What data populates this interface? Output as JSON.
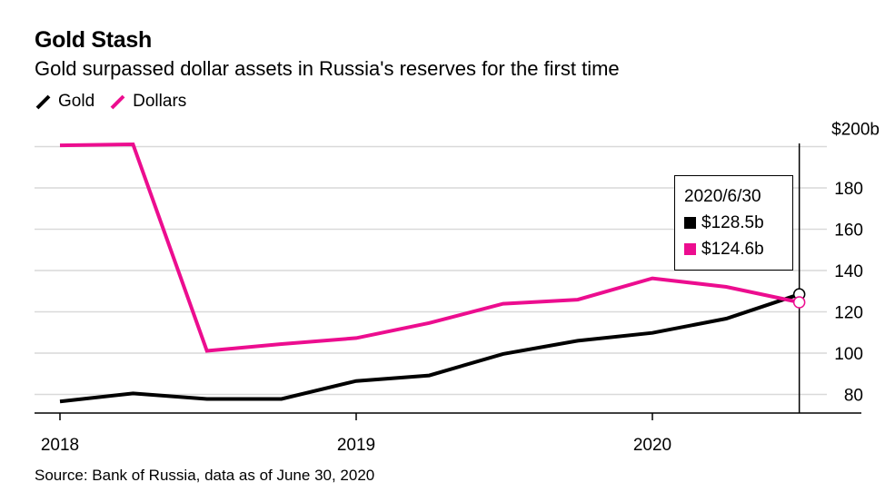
{
  "title": "Gold Stash",
  "subtitle": "Gold surpassed dollar assets in Russia's reserves for the first time",
  "source": "Source: Bank of Russia, data as of June 30, 2020",
  "legend": [
    {
      "label": "Gold",
      "color": "#000000"
    },
    {
      "label": "Dollars",
      "color": "#ec0d8f"
    }
  ],
  "tooltip": {
    "date": "2020/6/30",
    "gold_value": "$128.5b",
    "dollars_value": "$124.6b"
  },
  "chart_data": {
    "type": "line",
    "x": [
      "2018-01-01",
      "2018-04-01",
      "2018-07-01",
      "2018-10-01",
      "2019-01-01",
      "2019-04-01",
      "2019-07-01",
      "2019-10-01",
      "2020-01-01",
      "2020-04-01",
      "2020-06-30"
    ],
    "series": [
      {
        "name": "Gold",
        "color": "#000000",
        "values": [
          76.6,
          80.5,
          77.8,
          77.8,
          86.5,
          89.2,
          99.6,
          106.0,
          109.8,
          116.7,
          128.5
        ]
      },
      {
        "name": "Dollars",
        "color": "#ec0d8f",
        "values": [
          200.6,
          201.1,
          101.1,
          104.4,
          107.3,
          114.6,
          123.9,
          125.9,
          136.2,
          132.1,
          124.6
        ]
      }
    ],
    "xticks": [
      "2018",
      "2019",
      "2020"
    ],
    "yticks": [
      "$200b",
      "180",
      "160",
      "140",
      "120",
      "100",
      "80"
    ],
    "ylim": [
      70,
      200
    ],
    "grid": true,
    "legend_position": "top-left"
  }
}
